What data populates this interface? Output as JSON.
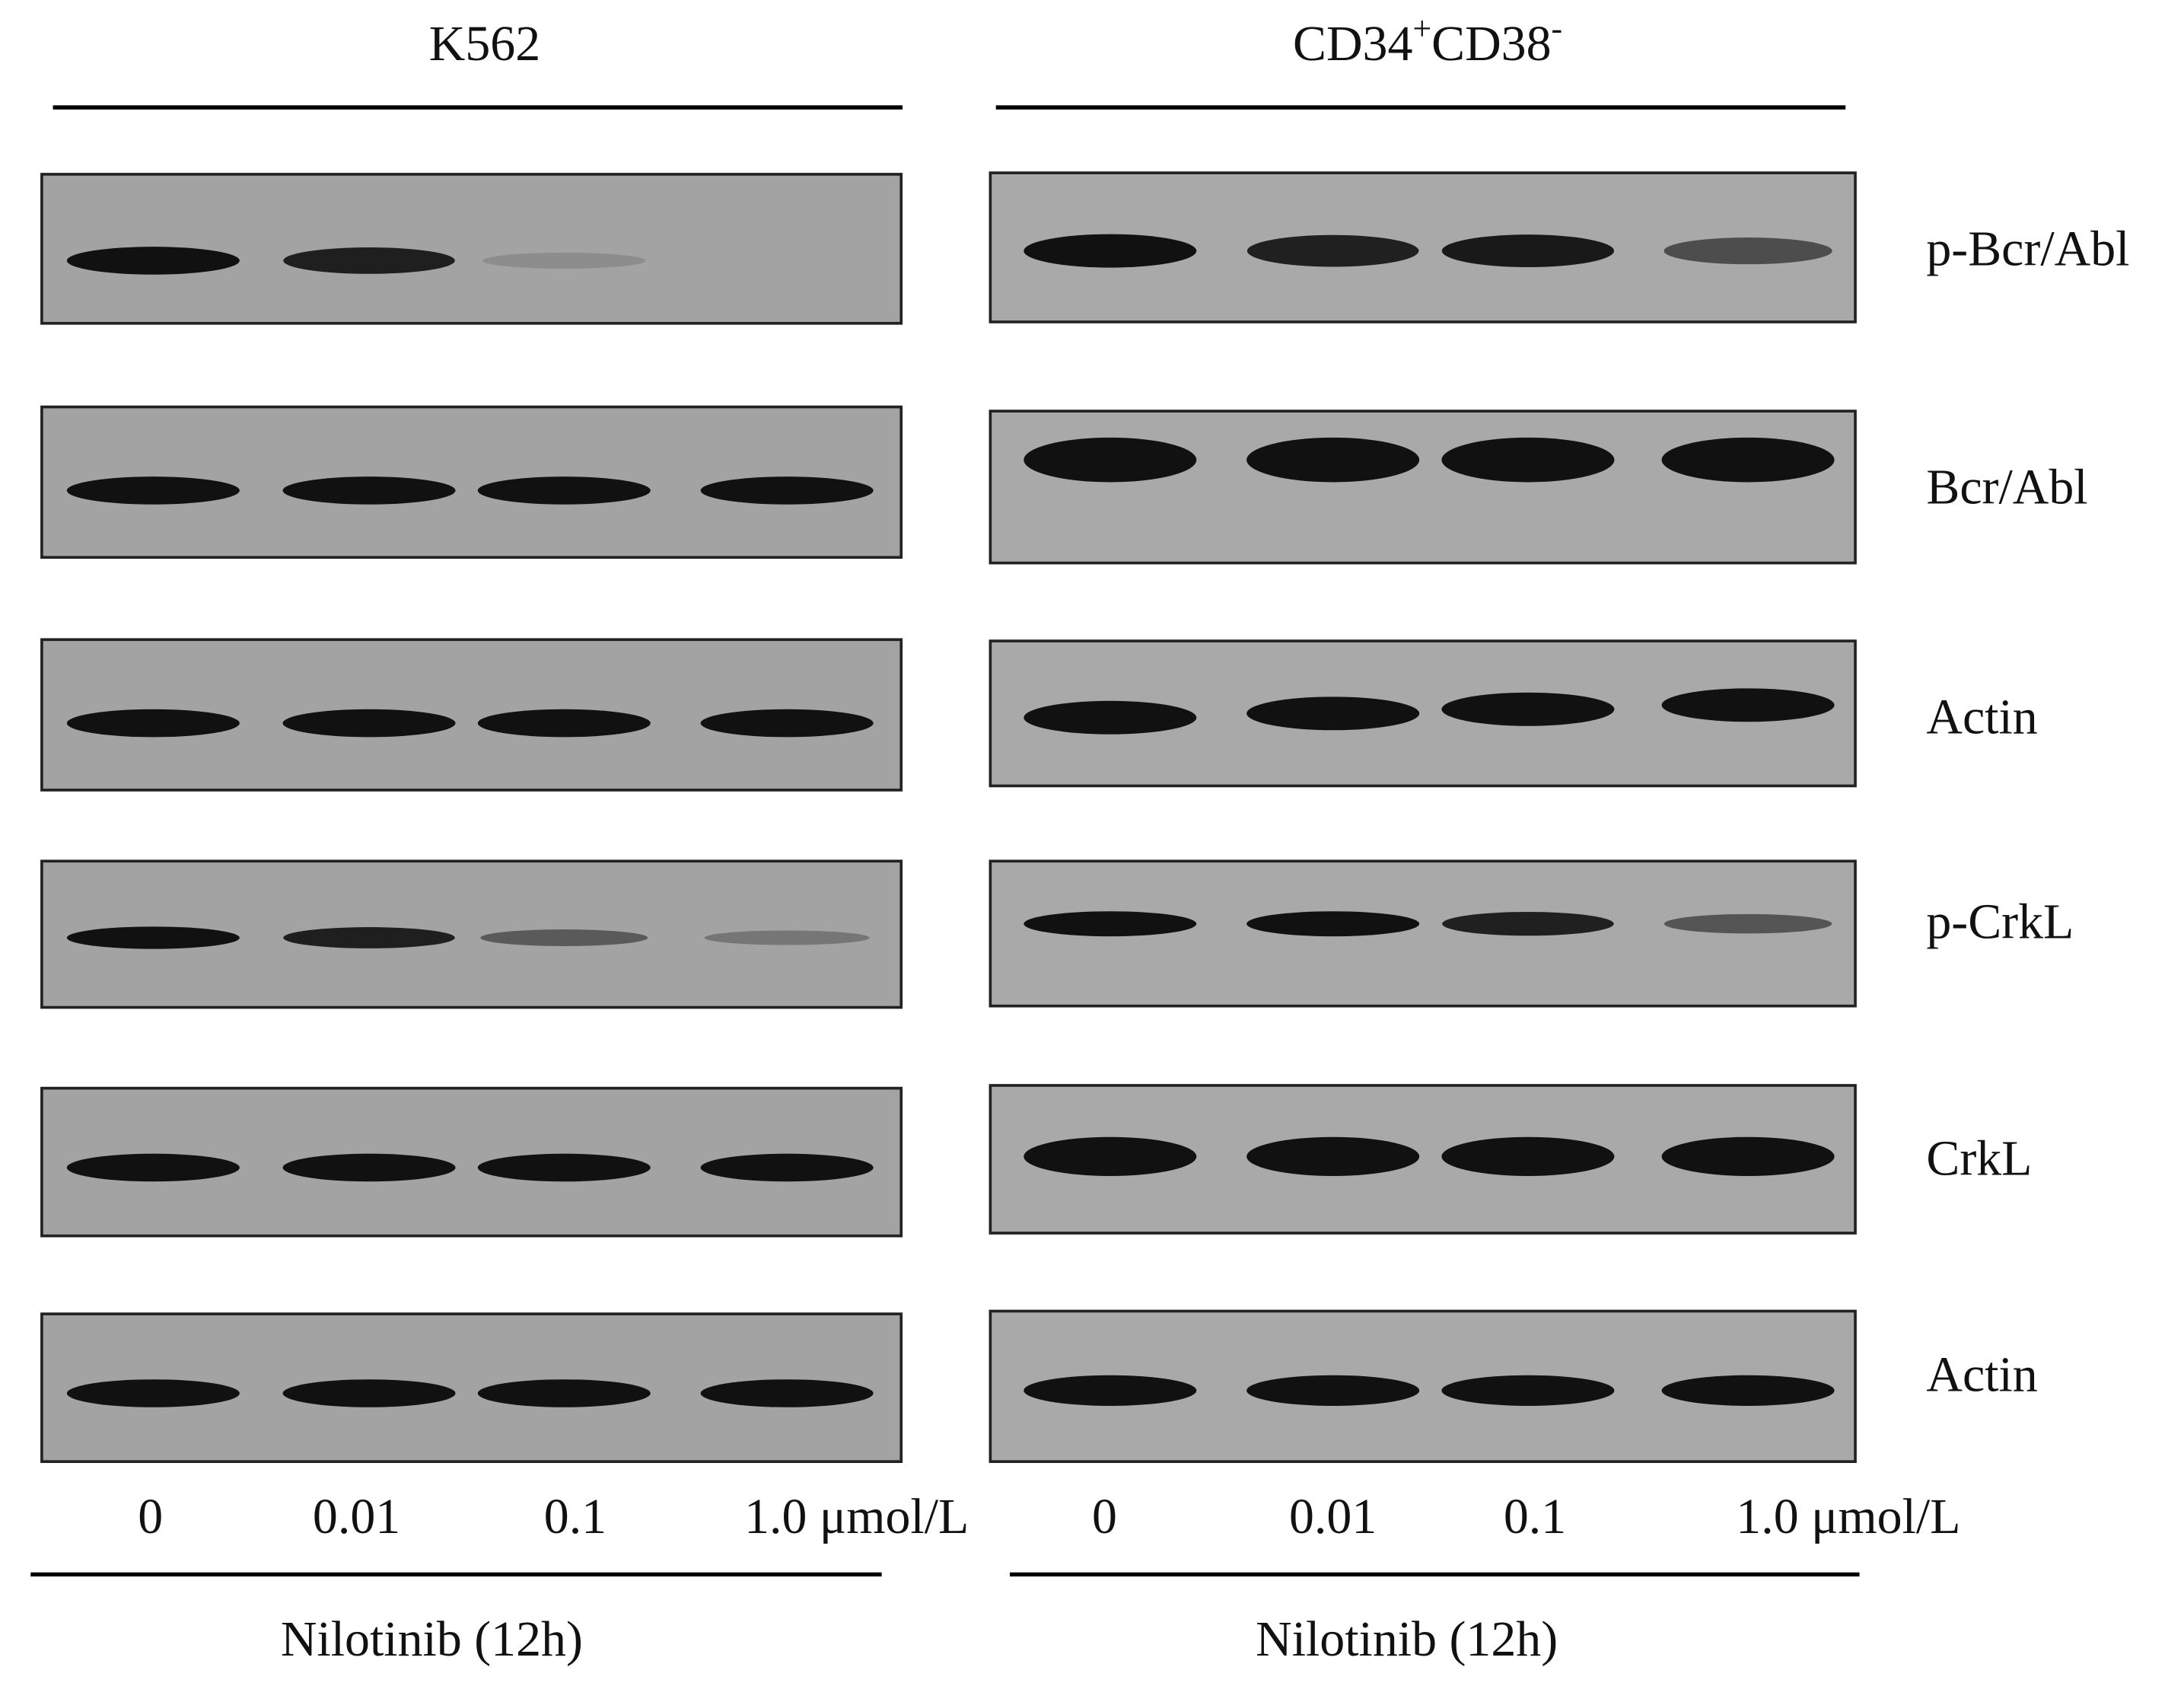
{
  "panels": [
    {
      "title_parts": [
        "K562"
      ],
      "doses": [
        "0",
        "0.01",
        "0.1",
        "1.0 μmol/L"
      ],
      "treatment": "Nilotinib (12h)"
    },
    {
      "title_parts": [
        "CD34",
        "+",
        "CD38",
        "-"
      ],
      "doses": [
        "0",
        "0.01",
        "0.1",
        "1.0 μmol/L"
      ],
      "treatment": "Nilotinib (12h)"
    }
  ],
  "proteins": [
    "p-Bcr/Abl",
    "Bcr/Abl",
    "Actin",
    "p-CrkL",
    "CrkL",
    "Actin"
  ]
}
